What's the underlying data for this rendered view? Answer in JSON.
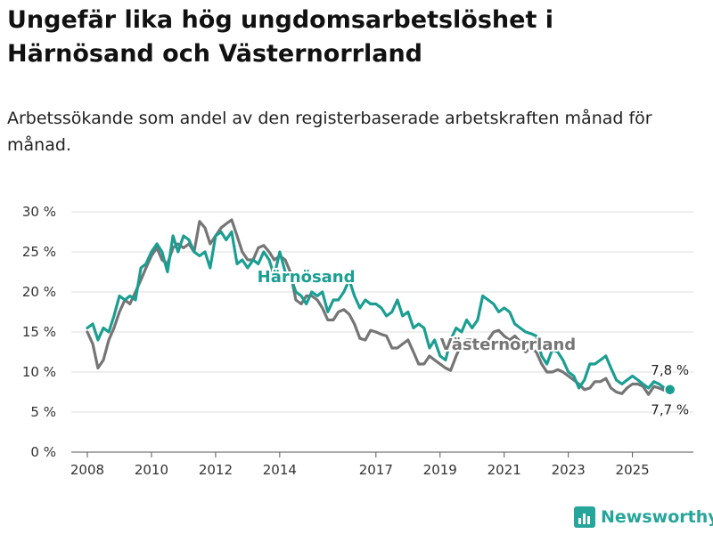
{
  "title": "Ungefär lika hög ungdomsarbetslöshet i Härnösand och Västernorrland",
  "subtitle": "Arbetssökande som andel av den registerbaserade arbetskraften månad för månad.",
  "brand": {
    "name": "Newsworthy",
    "icon": "bar-chart-logo-icon"
  },
  "chart_data": {
    "type": "line",
    "title": "Ungefär lika hög ungdomsarbetslöshet i Härnösand och Västernorrland",
    "xlabel": "",
    "ylabel": "",
    "x_ticks": [
      "2008",
      "2010",
      "2012",
      "2014",
      "2017",
      "2019",
      "2021",
      "2023",
      "2025"
    ],
    "y_ticks": [
      "0 %",
      "5 %",
      "10 %",
      "15 %",
      "20 %",
      "25 %",
      "30 %"
    ],
    "ylim": [
      0,
      30
    ],
    "xlim": [
      2007.5,
      2026.9
    ],
    "grid": true,
    "series": [
      {
        "name": "Västernorrland",
        "color": "#757575",
        "end_label": "7,7 %",
        "points": [
          [
            2008.0,
            15.0
          ],
          [
            2008.17,
            13.5
          ],
          [
            2008.33,
            10.5
          ],
          [
            2008.5,
            11.5
          ],
          [
            2008.67,
            14.0
          ],
          [
            2008.83,
            15.5
          ],
          [
            2009.0,
            17.5
          ],
          [
            2009.17,
            19.0
          ],
          [
            2009.33,
            18.5
          ],
          [
            2009.5,
            20.0
          ],
          [
            2009.67,
            21.5
          ],
          [
            2009.83,
            23.0
          ],
          [
            2010.0,
            24.5
          ],
          [
            2010.17,
            25.5
          ],
          [
            2010.33,
            24.0
          ],
          [
            2010.5,
            23.5
          ],
          [
            2010.67,
            25.5
          ],
          [
            2010.83,
            26.0
          ],
          [
            2011.0,
            25.5
          ],
          [
            2011.17,
            26.0
          ],
          [
            2011.33,
            25.0
          ],
          [
            2011.5,
            28.8
          ],
          [
            2011.67,
            28.0
          ],
          [
            2011.83,
            26.0
          ],
          [
            2012.0,
            27.0
          ],
          [
            2012.17,
            28.0
          ],
          [
            2012.33,
            28.5
          ],
          [
            2012.5,
            29.0
          ],
          [
            2012.67,
            27.0
          ],
          [
            2012.83,
            25.0
          ],
          [
            2013.0,
            24.0
          ],
          [
            2013.17,
            24.0
          ],
          [
            2013.33,
            25.5
          ],
          [
            2013.5,
            25.8
          ],
          [
            2013.67,
            25.0
          ],
          [
            2013.83,
            24.0
          ],
          [
            2014.0,
            24.5
          ],
          [
            2014.17,
            24.0
          ],
          [
            2014.33,
            22.5
          ],
          [
            2014.5,
            19.0
          ],
          [
            2014.67,
            18.5
          ],
          [
            2014.83,
            19.5
          ],
          [
            2015.0,
            19.5
          ],
          [
            2015.17,
            19.0
          ],
          [
            2015.33,
            18.0
          ],
          [
            2015.5,
            16.5
          ],
          [
            2015.67,
            16.5
          ],
          [
            2015.83,
            17.5
          ],
          [
            2016.0,
            17.8
          ],
          [
            2016.17,
            17.2
          ],
          [
            2016.33,
            16.0
          ],
          [
            2016.5,
            14.2
          ],
          [
            2016.67,
            14.0
          ],
          [
            2016.83,
            15.2
          ],
          [
            2017.0,
            15.0
          ],
          [
            2017.17,
            14.7
          ],
          [
            2017.33,
            14.5
          ],
          [
            2017.5,
            13.0
          ],
          [
            2017.67,
            13.0
          ],
          [
            2017.83,
            13.5
          ],
          [
            2018.0,
            14.0
          ],
          [
            2018.17,
            12.5
          ],
          [
            2018.33,
            11.0
          ],
          [
            2018.5,
            11.0
          ],
          [
            2018.67,
            12.0
          ],
          [
            2018.83,
            11.5
          ],
          [
            2019.0,
            11.0
          ],
          [
            2019.17,
            10.5
          ],
          [
            2019.33,
            10.2
          ],
          [
            2019.5,
            12.0
          ],
          [
            2019.67,
            13.5
          ],
          [
            2019.83,
            14.0
          ],
          [
            2020.0,
            14.0
          ],
          [
            2020.17,
            14.0
          ],
          [
            2020.33,
            13.5
          ],
          [
            2020.5,
            14.0
          ],
          [
            2020.67,
            15.0
          ],
          [
            2020.83,
            15.2
          ],
          [
            2021.0,
            14.5
          ],
          [
            2021.17,
            14.0
          ],
          [
            2021.33,
            14.5
          ],
          [
            2021.5,
            13.8
          ],
          [
            2021.67,
            12.5
          ],
          [
            2021.83,
            13.0
          ],
          [
            2022.0,
            12.5
          ],
          [
            2022.17,
            11.0
          ],
          [
            2022.33,
            10.0
          ],
          [
            2022.5,
            10.0
          ],
          [
            2022.67,
            10.3
          ],
          [
            2022.83,
            10.0
          ],
          [
            2023.0,
            9.5
          ],
          [
            2023.17,
            9.0
          ],
          [
            2023.33,
            8.5
          ],
          [
            2023.5,
            7.8
          ],
          [
            2023.67,
            8.0
          ],
          [
            2023.83,
            8.8
          ],
          [
            2024.0,
            8.8
          ],
          [
            2024.17,
            9.2
          ],
          [
            2024.33,
            8.0
          ],
          [
            2024.5,
            7.5
          ],
          [
            2024.67,
            7.3
          ],
          [
            2024.83,
            8.0
          ],
          [
            2025.0,
            8.5
          ],
          [
            2025.17,
            8.5
          ],
          [
            2025.33,
            8.2
          ],
          [
            2025.5,
            7.2
          ],
          [
            2025.67,
            8.2
          ],
          [
            2025.83,
            8.0
          ],
          [
            2026.0,
            7.7
          ],
          [
            2026.17,
            7.7
          ]
        ],
        "inline_label": "Västernorrland",
        "inline_label_pos": [
          2019.0,
          12.8
        ]
      },
      {
        "name": "Härnösand",
        "color": "#1a9e92",
        "end_label": "7,8 %",
        "points": [
          [
            2008.0,
            15.5
          ],
          [
            2008.17,
            16.0
          ],
          [
            2008.33,
            14.0
          ],
          [
            2008.5,
            15.5
          ],
          [
            2008.67,
            15.0
          ],
          [
            2008.83,
            17.0
          ],
          [
            2009.0,
            19.5
          ],
          [
            2009.17,
            19.0
          ],
          [
            2009.33,
            19.5
          ],
          [
            2009.5,
            19.0
          ],
          [
            2009.67,
            23.0
          ],
          [
            2009.83,
            23.5
          ],
          [
            2010.0,
            25.0
          ],
          [
            2010.17,
            26.0
          ],
          [
            2010.33,
            25.0
          ],
          [
            2010.5,
            22.5
          ],
          [
            2010.67,
            27.0
          ],
          [
            2010.83,
            25.0
          ],
          [
            2011.0,
            27.0
          ],
          [
            2011.17,
            26.5
          ],
          [
            2011.33,
            25.0
          ],
          [
            2011.5,
            24.5
          ],
          [
            2011.67,
            25.0
          ],
          [
            2011.83,
            23.0
          ],
          [
            2012.0,
            27.0
          ],
          [
            2012.17,
            27.5
          ],
          [
            2012.33,
            26.5
          ],
          [
            2012.5,
            27.5
          ],
          [
            2012.67,
            23.5
          ],
          [
            2012.83,
            24.0
          ],
          [
            2013.0,
            23.0
          ],
          [
            2013.17,
            24.0
          ],
          [
            2013.33,
            23.5
          ],
          [
            2013.5,
            25.0
          ],
          [
            2013.67,
            24.0
          ],
          [
            2013.83,
            22.0
          ],
          [
            2014.0,
            25.0
          ],
          [
            2014.17,
            22.5
          ],
          [
            2014.33,
            22.0
          ],
          [
            2014.5,
            20.0
          ],
          [
            2014.67,
            19.5
          ],
          [
            2014.83,
            18.5
          ],
          [
            2015.0,
            20.0
          ],
          [
            2015.17,
            19.5
          ],
          [
            2015.33,
            20.0
          ],
          [
            2015.5,
            17.5
          ],
          [
            2015.67,
            19.0
          ],
          [
            2015.83,
            19.0
          ],
          [
            2016.0,
            20.0
          ],
          [
            2016.17,
            21.5
          ],
          [
            2016.33,
            19.5
          ],
          [
            2016.5,
            18.0
          ],
          [
            2016.67,
            19.0
          ],
          [
            2016.83,
            18.5
          ],
          [
            2017.0,
            18.5
          ],
          [
            2017.17,
            18.0
          ],
          [
            2017.33,
            17.0
          ],
          [
            2017.5,
            17.5
          ],
          [
            2017.67,
            19.0
          ],
          [
            2017.83,
            17.0
          ],
          [
            2018.0,
            17.5
          ],
          [
            2018.17,
            15.5
          ],
          [
            2018.33,
            16.0
          ],
          [
            2018.5,
            15.5
          ],
          [
            2018.67,
            13.0
          ],
          [
            2018.83,
            14.0
          ],
          [
            2019.0,
            12.0
          ],
          [
            2019.17,
            11.5
          ],
          [
            2019.33,
            14.0
          ],
          [
            2019.5,
            15.5
          ],
          [
            2019.67,
            15.0
          ],
          [
            2019.83,
            16.5
          ],
          [
            2020.0,
            15.5
          ],
          [
            2020.17,
            16.5
          ],
          [
            2020.33,
            19.5
          ],
          [
            2020.5,
            19.0
          ],
          [
            2020.67,
            18.5
          ],
          [
            2020.83,
            17.5
          ],
          [
            2021.0,
            18.0
          ],
          [
            2021.17,
            17.5
          ],
          [
            2021.33,
            16.0
          ],
          [
            2021.5,
            15.5
          ],
          [
            2021.67,
            15.0
          ],
          [
            2021.83,
            14.8
          ],
          [
            2022.0,
            14.5
          ],
          [
            2022.17,
            12.0
          ],
          [
            2022.33,
            11.0
          ],
          [
            2022.5,
            12.8
          ],
          [
            2022.67,
            12.5
          ],
          [
            2022.83,
            11.5
          ],
          [
            2023.0,
            10.0
          ],
          [
            2023.17,
            9.5
          ],
          [
            2023.33,
            8.0
          ],
          [
            2023.5,
            9.0
          ],
          [
            2023.67,
            11.0
          ],
          [
            2023.83,
            11.0
          ],
          [
            2024.0,
            11.5
          ],
          [
            2024.17,
            12.0
          ],
          [
            2024.33,
            10.5
          ],
          [
            2024.5,
            9.0
          ],
          [
            2024.67,
            8.5
          ],
          [
            2024.83,
            9.0
          ],
          [
            2025.0,
            9.5
          ],
          [
            2025.17,
            9.0
          ],
          [
            2025.33,
            8.5
          ],
          [
            2025.5,
            8.0
          ],
          [
            2025.67,
            8.8
          ],
          [
            2025.83,
            8.5
          ],
          [
            2026.0,
            8.0
          ],
          [
            2026.17,
            7.8
          ]
        ],
        "inline_label": "Härnösand",
        "inline_label_pos": [
          2013.3,
          21.2
        ]
      }
    ]
  }
}
